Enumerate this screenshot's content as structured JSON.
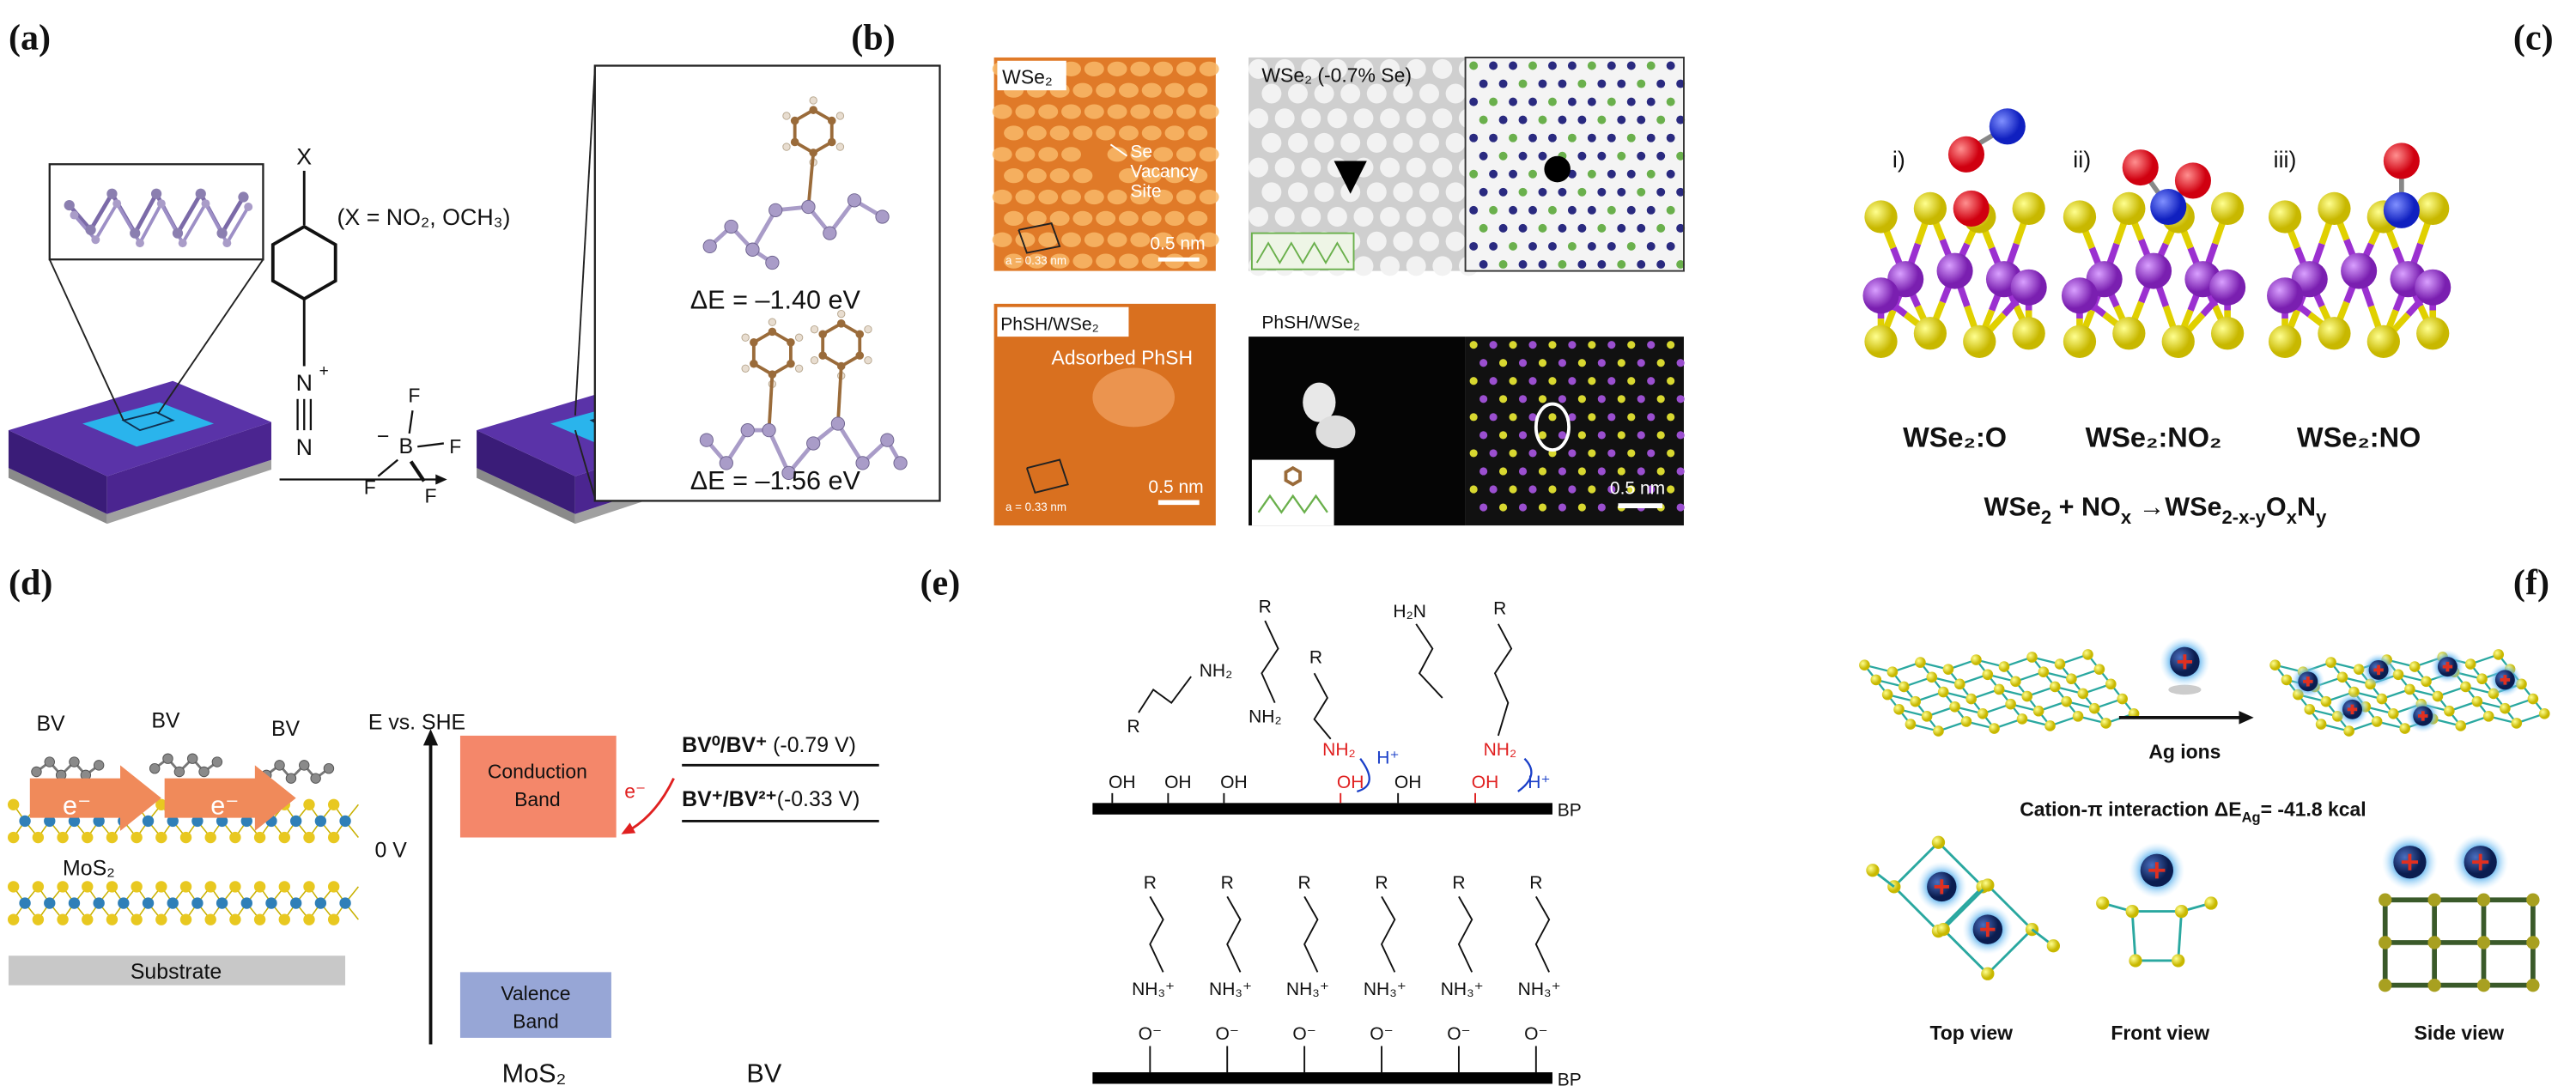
{
  "a": {
    "label": "(a)",
    "x": "X",
    "x_note": "(X = NO₂, OCH₃)",
    "n_top": "N",
    "plus": "+",
    "n_bottom": "N",
    "minus": "−",
    "b": "B",
    "f": [
      "F",
      "F",
      "F",
      "F"
    ],
    "de": [
      "ΔE = –1.40 eV",
      "ΔE = –1.56 eV"
    ]
  },
  "b": {
    "label": "(b)",
    "wse2": "WSe₂",
    "vacancy": [
      "Se",
      "Vacancy",
      "Site"
    ],
    "lattice": [
      "a = 0.33 nm",
      "a = 0.33 nm"
    ],
    "scale": [
      "0.5 nm",
      "0.5 nm",
      "0.5 nm"
    ],
    "wse2_defect": "WSe₂ (-0.7% Se)",
    "phsh": [
      "PhSH/WSe₂",
      "PhSH/WSe₂"
    ],
    "adsorbed": "Adsorbed PhSH"
  },
  "c": {
    "label": "(c)",
    "roman": [
      "i)",
      "ii)",
      "iii)"
    ],
    "names": [
      "WSe₂:O",
      "WSe₂:NO₂",
      "WSe₂:NO"
    ],
    "reaction": [
      "WSe",
      "2",
      " + NO",
      "x",
      " →WSe",
      "2-x-y",
      "O",
      "x",
      "N",
      "y"
    ]
  },
  "d": {
    "label": "(d)",
    "bv": [
      "BV",
      "BV",
      "BV"
    ],
    "electron": [
      "e⁻",
      "e⁻",
      "e⁻"
    ],
    "mos2_layer": "MoS₂",
    "substrate": "Substrate",
    "axis": "E vs. SHE",
    "zero": "0 V",
    "cb": [
      "Conduction",
      "Band"
    ],
    "vb": [
      "Valence",
      "Band"
    ],
    "couple1": [
      "BV⁰/BV⁺",
      " (-0.79 V)"
    ],
    "couple2": [
      "BV⁺/BV²⁺",
      "(-0.33 V)"
    ],
    "x_labels": [
      "MoS₂",
      "BV"
    ]
  },
  "e": {
    "label": "(e)",
    "top_texts": [
      "NH₂",
      "R",
      "R",
      "NH₂",
      "R",
      "NH₂",
      "H⁺",
      "H₂N",
      "R",
      "NH₂",
      "H⁺"
    ],
    "oh": [
      "OH",
      "OH",
      "OH",
      "OH",
      "OH",
      "OH"
    ],
    "bp": [
      "BP",
      "BP"
    ],
    "chains": [
      {
        "r": "R",
        "n": "NH₃⁺",
        "o": "O⁻"
      },
      {
        "r": "R",
        "n": "NH₃⁺",
        "o": "O⁻"
      },
      {
        "r": "R",
        "n": "NH₃⁺",
        "o": "O⁻"
      },
      {
        "r": "R",
        "n": "NH₃⁺",
        "o": "O⁻"
      },
      {
        "r": "R",
        "n": "NH₃⁺",
        "o": "O⁻"
      },
      {
        "r": "R",
        "n": "NH₃⁺",
        "o": "O⁻"
      }
    ]
  },
  "f": {
    "label": "(f)",
    "ag": "Ag ions",
    "interaction": [
      "Cation-π interaction  ",
      "ΔE",
      "Ag",
      "= -41.8 kcal"
    ],
    "views": [
      "Top view",
      "Front view",
      "Side view"
    ]
  }
}
